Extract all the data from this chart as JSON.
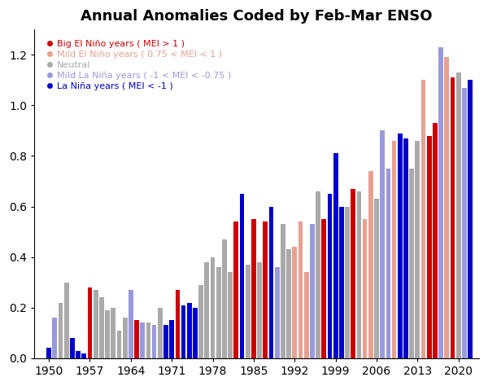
{
  "title": "Annual Anomalies Coded by Feb-Mar ENSO",
  "years": [
    1950,
    1951,
    1952,
    1953,
    1954,
    1955,
    1956,
    1957,
    1958,
    1959,
    1960,
    1961,
    1962,
    1963,
    1964,
    1965,
    1966,
    1967,
    1968,
    1969,
    1970,
    1971,
    1972,
    1973,
    1974,
    1975,
    1976,
    1977,
    1978,
    1979,
    1980,
    1981,
    1982,
    1983,
    1984,
    1985,
    1986,
    1987,
    1988,
    1989,
    1990,
    1991,
    1992,
    1993,
    1994,
    1995,
    1996,
    1997,
    1998,
    1999,
    2000,
    2001,
    2002,
    2003,
    2004,
    2005,
    2006,
    2007,
    2008,
    2009,
    2010,
    2011,
    2012,
    2013,
    2014,
    2015,
    2016,
    2017,
    2018,
    2019,
    2020,
    2021,
    2022
  ],
  "values": [
    0.04,
    0.16,
    0.22,
    0.3,
    0.08,
    0.03,
    0.02,
    0.28,
    0.27,
    0.24,
    0.19,
    0.2,
    0.11,
    0.16,
    0.27,
    0.15,
    0.14,
    0.14,
    0.13,
    0.2,
    0.13,
    0.15,
    0.27,
    0.21,
    0.22,
    0.2,
    0.29,
    0.38,
    0.4,
    0.36,
    0.47,
    0.34,
    0.54,
    0.65,
    0.37,
    0.55,
    0.38,
    0.54,
    0.6,
    0.36,
    0.53,
    0.43,
    0.44,
    0.54,
    0.34,
    0.53,
    0.66,
    0.55,
    0.65,
    0.81,
    0.6,
    0.6,
    0.67,
    0.66,
    0.55,
    0.74,
    0.63,
    0.9,
    0.75,
    0.86,
    0.89,
    0.87,
    0.75,
    0.86,
    1.1,
    0.88,
    0.93,
    1.23,
    1.19,
    1.11,
    1.13,
    1.07,
    1.1
  ],
  "categories": [
    "la_nina",
    "mild_la_nina",
    "neutral",
    "neutral",
    "la_nina",
    "la_nina",
    "la_nina",
    "big_el_nino",
    "neutral",
    "neutral",
    "neutral",
    "neutral",
    "neutral",
    "neutral",
    "mild_la_nina",
    "big_el_nino",
    "mild_la_nina",
    "neutral",
    "mild_la_nina",
    "neutral",
    "la_nina",
    "la_nina",
    "big_el_nino",
    "la_nina",
    "la_nina",
    "la_nina",
    "neutral",
    "neutral",
    "neutral",
    "neutral",
    "neutral",
    "neutral",
    "big_el_nino",
    "la_nina",
    "neutral",
    "big_el_nino",
    "neutral",
    "big_el_nino",
    "la_nina",
    "mild_la_nina",
    "neutral",
    "neutral",
    "mild_el_nino",
    "mild_el_nino",
    "mild_el_nino",
    "mild_la_nina",
    "neutral",
    "big_el_nino",
    "la_nina",
    "la_nina",
    "la_nina",
    "neutral",
    "big_el_nino",
    "neutral",
    "mild_el_nino",
    "mild_el_nino",
    "neutral",
    "mild_la_nina",
    "mild_la_nina",
    "mild_el_nino",
    "la_nina",
    "la_nina",
    "neutral",
    "neutral",
    "mild_el_nino",
    "big_el_nino",
    "big_el_nino",
    "mild_la_nina",
    "mild_el_nino",
    "big_el_nino",
    "neutral",
    "mild_la_nina",
    "la_nina"
  ],
  "color_map": {
    "big_el_nino": "#CC0000",
    "mild_el_nino": "#E8A090",
    "neutral": "#AAAAAA",
    "mild_la_nina": "#9999DD",
    "la_nina": "#0000CC"
  },
  "legend_labels": [
    "Big El Niño years ( MEI > 1 )",
    "Mild El Niño years ( 0.75 < MEI < 1 )",
    "Neutral",
    "Mild La Niña years ( -1 < MEI < -0.75 )",
    "La Niña years ( MEI < -1 )"
  ],
  "legend_colors": [
    "#CC0000",
    "#E8A090",
    "#AAAAAA",
    "#9999DD",
    "#0000CC"
  ],
  "legend_text_colors": [
    "#CC0000",
    "#E8A090",
    "#AAAAAA",
    "#9999DD",
    "#0000CC"
  ],
  "xtick_labels": [
    "1950",
    "1957",
    "1964",
    "1971",
    "1978",
    "1985",
    "1992",
    "1999",
    "2006",
    "2013",
    "2020"
  ],
  "xtick_years": [
    1950,
    1957,
    1964,
    1971,
    1978,
    1985,
    1992,
    1999,
    2006,
    2013,
    2020
  ],
  "ylim": [
    0,
    1.3
  ],
  "yticks": [
    0.0,
    0.2,
    0.4,
    0.6,
    0.8,
    1.0,
    1.2
  ],
  "background_color": "#FFFFFF"
}
